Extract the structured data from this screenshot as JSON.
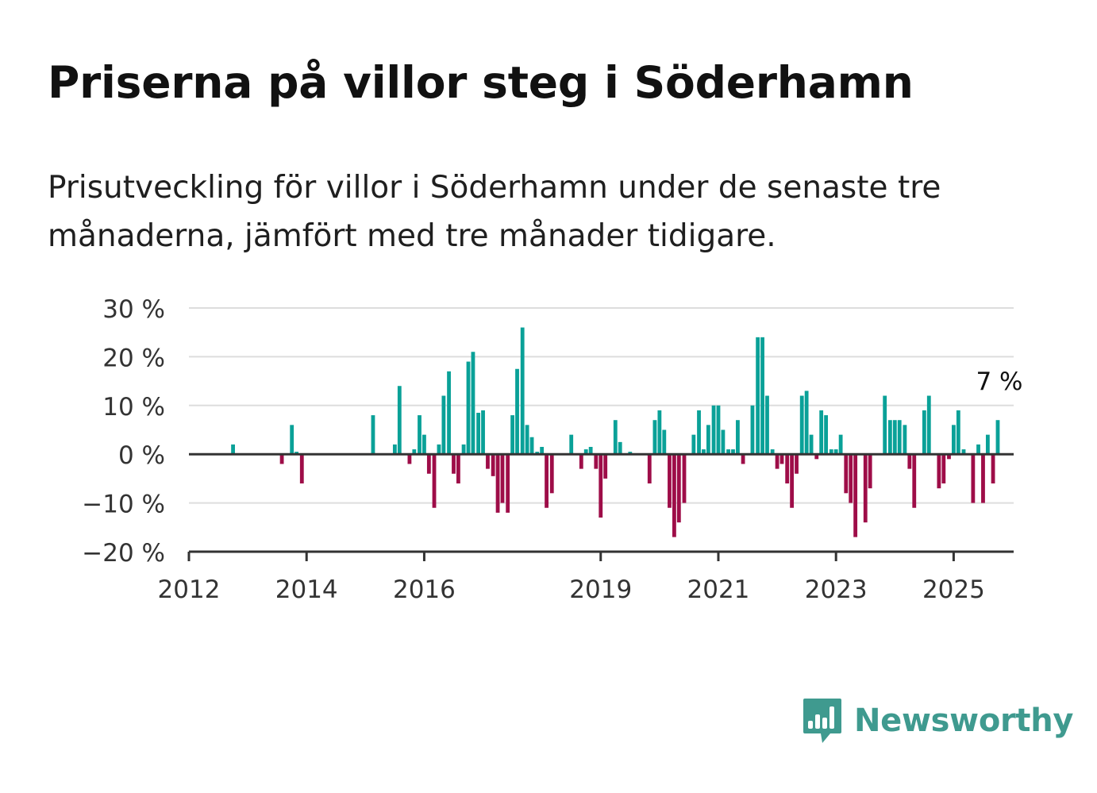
{
  "title": "Priserna på villor steg i Söderhamn",
  "subtitle": "Prisutveckling för villor i Söderhamn under de senaste tre månaderna, jämfört med tre månader tidigare.",
  "brand": "Newsworthy",
  "colors": {
    "positive": "#0aa198",
    "negative": "#9e0d48",
    "grid": "#dddddd",
    "axis": "#333333",
    "brand": "#3f9a8f"
  },
  "chart_data": {
    "type": "bar",
    "ylim": [
      -20,
      30
    ],
    "yticks": [
      30,
      20,
      10,
      0,
      -10,
      -20
    ],
    "ytick_labels": [
      "30 %",
      "20 %",
      "10 %",
      "0 %",
      "−10 %",
      "−20 %"
    ],
    "xlim": [
      2012,
      2026.02
    ],
    "xticks": [
      2012,
      2014,
      2016,
      2019,
      2021,
      2023,
      2025
    ],
    "xtick_labels": [
      "2012",
      "2014",
      "2016",
      "2019",
      "2021",
      "2023",
      "2025"
    ],
    "annotation": "7 %",
    "grid": true,
    "values": [
      {
        "x": 2012.75,
        "y": 2
      },
      {
        "x": 2013.58,
        "y": -2
      },
      {
        "x": 2013.75,
        "y": 6
      },
      {
        "x": 2013.83,
        "y": 0.5
      },
      {
        "x": 2013.92,
        "y": -6
      },
      {
        "x": 2015.13,
        "y": 8
      },
      {
        "x": 2015.5,
        "y": 2
      },
      {
        "x": 2015.58,
        "y": 14
      },
      {
        "x": 2015.75,
        "y": -2
      },
      {
        "x": 2015.83,
        "y": 1
      },
      {
        "x": 2015.92,
        "y": 8
      },
      {
        "x": 2016.0,
        "y": 4
      },
      {
        "x": 2016.08,
        "y": -4
      },
      {
        "x": 2016.17,
        "y": -11
      },
      {
        "x": 2016.25,
        "y": 2
      },
      {
        "x": 2016.33,
        "y": 12
      },
      {
        "x": 2016.42,
        "y": 17
      },
      {
        "x": 2016.5,
        "y": -4
      },
      {
        "x": 2016.58,
        "y": -6
      },
      {
        "x": 2016.67,
        "y": 2
      },
      {
        "x": 2016.75,
        "y": 19
      },
      {
        "x": 2016.83,
        "y": 21
      },
      {
        "x": 2016.92,
        "y": 8.5
      },
      {
        "x": 2017.0,
        "y": 9
      },
      {
        "x": 2017.08,
        "y": -3
      },
      {
        "x": 2017.17,
        "y": -4.5
      },
      {
        "x": 2017.25,
        "y": -12
      },
      {
        "x": 2017.33,
        "y": -10
      },
      {
        "x": 2017.42,
        "y": -12
      },
      {
        "x": 2017.5,
        "y": 8
      },
      {
        "x": 2017.58,
        "y": 17.5
      },
      {
        "x": 2017.67,
        "y": 26
      },
      {
        "x": 2017.75,
        "y": 6
      },
      {
        "x": 2017.83,
        "y": 3.5
      },
      {
        "x": 2017.92,
        "y": 0.5
      },
      {
        "x": 2018.0,
        "y": 1.5
      },
      {
        "x": 2018.08,
        "y": -11
      },
      {
        "x": 2018.17,
        "y": -8
      },
      {
        "x": 2018.5,
        "y": 4
      },
      {
        "x": 2018.67,
        "y": -3
      },
      {
        "x": 2018.75,
        "y": 1
      },
      {
        "x": 2018.83,
        "y": 1.5
      },
      {
        "x": 2018.92,
        "y": -3
      },
      {
        "x": 2019.0,
        "y": -13
      },
      {
        "x": 2019.08,
        "y": -5
      },
      {
        "x": 2019.25,
        "y": 7
      },
      {
        "x": 2019.33,
        "y": 2.5
      },
      {
        "x": 2019.5,
        "y": 0.5
      },
      {
        "x": 2019.83,
        "y": -6
      },
      {
        "x": 2019.92,
        "y": 7
      },
      {
        "x": 2020.0,
        "y": 9
      },
      {
        "x": 2020.08,
        "y": 5
      },
      {
        "x": 2020.17,
        "y": -11
      },
      {
        "x": 2020.25,
        "y": -17
      },
      {
        "x": 2020.33,
        "y": -14
      },
      {
        "x": 2020.42,
        "y": -10
      },
      {
        "x": 2020.58,
        "y": 4
      },
      {
        "x": 2020.67,
        "y": 9
      },
      {
        "x": 2020.75,
        "y": 1
      },
      {
        "x": 2020.83,
        "y": 6
      },
      {
        "x": 2020.92,
        "y": 10
      },
      {
        "x": 2021.0,
        "y": 10
      },
      {
        "x": 2021.08,
        "y": 5
      },
      {
        "x": 2021.17,
        "y": 1
      },
      {
        "x": 2021.25,
        "y": 1
      },
      {
        "x": 2021.33,
        "y": 7
      },
      {
        "x": 2021.42,
        "y": -2
      },
      {
        "x": 2021.58,
        "y": 10
      },
      {
        "x": 2021.67,
        "y": 24
      },
      {
        "x": 2021.75,
        "y": 24
      },
      {
        "x": 2021.83,
        "y": 12
      },
      {
        "x": 2021.92,
        "y": 1
      },
      {
        "x": 2022.0,
        "y": -3
      },
      {
        "x": 2022.08,
        "y": -2
      },
      {
        "x": 2022.17,
        "y": -6
      },
      {
        "x": 2022.25,
        "y": -11
      },
      {
        "x": 2022.33,
        "y": -4
      },
      {
        "x": 2022.42,
        "y": 12
      },
      {
        "x": 2022.5,
        "y": 13
      },
      {
        "x": 2022.58,
        "y": 4
      },
      {
        "x": 2022.67,
        "y": -1
      },
      {
        "x": 2022.75,
        "y": 9
      },
      {
        "x": 2022.83,
        "y": 8
      },
      {
        "x": 2022.92,
        "y": 1
      },
      {
        "x": 2023.0,
        "y": 1
      },
      {
        "x": 2023.08,
        "y": 4
      },
      {
        "x": 2023.17,
        "y": -8
      },
      {
        "x": 2023.25,
        "y": -10
      },
      {
        "x": 2023.33,
        "y": -17
      },
      {
        "x": 2023.5,
        "y": -14
      },
      {
        "x": 2023.58,
        "y": -7
      },
      {
        "x": 2023.83,
        "y": 12
      },
      {
        "x": 2023.92,
        "y": 7
      },
      {
        "x": 2024.0,
        "y": 7
      },
      {
        "x": 2024.08,
        "y": 7
      },
      {
        "x": 2024.17,
        "y": 6
      },
      {
        "x": 2024.25,
        "y": -3
      },
      {
        "x": 2024.33,
        "y": -11
      },
      {
        "x": 2024.5,
        "y": 9
      },
      {
        "x": 2024.58,
        "y": 12
      },
      {
        "x": 2024.75,
        "y": -7
      },
      {
        "x": 2024.83,
        "y": -6
      },
      {
        "x": 2024.92,
        "y": -1
      },
      {
        "x": 2025.0,
        "y": 6
      },
      {
        "x": 2025.08,
        "y": 9
      },
      {
        "x": 2025.17,
        "y": 1
      },
      {
        "x": 2025.33,
        "y": -10
      },
      {
        "x": 2025.42,
        "y": 2
      },
      {
        "x": 2025.5,
        "y": -10
      },
      {
        "x": 2025.58,
        "y": 4
      },
      {
        "x": 2025.67,
        "y": -6
      },
      {
        "x": 2025.75,
        "y": 7
      }
    ]
  }
}
